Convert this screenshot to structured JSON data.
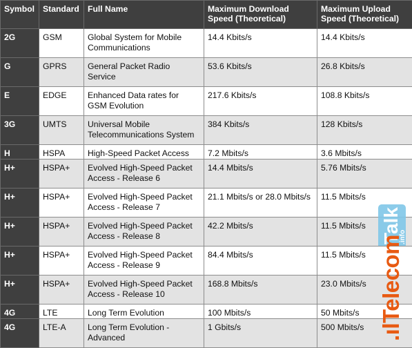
{
  "table": {
    "headers": {
      "symbol": "Symbol",
      "standard": "Standard",
      "full_name": "Full Name",
      "download_line1": "Maximum Download",
      "download_line2": "Speed (Theoretical)",
      "upload_line1": "Maximum Upload",
      "upload_line2": "Speed (Theoretical)"
    },
    "rows": [
      {
        "symbol": "2G",
        "standard": "GSM",
        "name1": "Global System for Mobile",
        "name2": "Communications",
        "download": "14.4 Kbits/s",
        "upload": "14.4 Kbits/s"
      },
      {
        "symbol": "G",
        "standard": "GPRS",
        "name1": "General Packet Radio",
        "name2": "Service",
        "download": "53.6 Kbits/s",
        "upload": "26.8 Kbits/s"
      },
      {
        "symbol": "E",
        "standard": "EDGE",
        "name1": "Enhanced Data rates for",
        "name2": "GSM Evolution",
        "download": "217.6 Kbits/s",
        "upload": "108.8 Kbits/s"
      },
      {
        "symbol": "3G",
        "standard": "UMTS",
        "name1": "Universal Mobile",
        "name2": "Telecommunications System",
        "download": "384 Kbits/s",
        "upload": "128 Kbits/s"
      },
      {
        "symbol": "H",
        "standard": "HSPA",
        "name1": "High-Speed Packet Access",
        "name2": "",
        "download": "7.2 Mbits/s",
        "upload": "3.6 Mbits/s"
      },
      {
        "symbol": "H+",
        "standard": "HSPA+",
        "name1": "Evolved High-Speed Packet",
        "name2": "Access - Release 6",
        "download": "14.4 Mbits/s",
        "upload": "5.76 Mbits/s"
      },
      {
        "symbol": "H+",
        "standard": "HSPA+",
        "name1": "Evolved High-Speed Packet",
        "name2": "Access - Release 7",
        "download": "21.1 Mbits/s or 28.0 Mbits/s",
        "upload": "11.5 Mbits/s"
      },
      {
        "symbol": "H+",
        "standard": "HSPA+",
        "name1": "Evolved High-Speed Packet",
        "name2": "Access - Release 8",
        "download": "42.2 Mbits/s",
        "upload": "11.5 Mbits/s"
      },
      {
        "symbol": "H+",
        "standard": "HSPA+",
        "name1": "Evolved High-Speed Packet",
        "name2": "Access - Release 9",
        "download": "84.4 Mbits/s",
        "upload": "11.5 Mbits/s"
      },
      {
        "symbol": "H+",
        "standard": "HSPA+",
        "name1": "Evolved High-Speed Packet",
        "name2": "Access - Release 10",
        "download": "168.8 Mbits/s",
        "upload": "23.0 Mbits/s"
      },
      {
        "symbol": "4G",
        "standard": "LTE",
        "name1": "Long Term Evolution",
        "name2": "",
        "download": "100 Mbits/s",
        "upload": "50 Mbits/s"
      },
      {
        "symbol": "4G",
        "standard": "LTE-A",
        "name1": "Long Term Evolution -",
        "name2": "Advanced",
        "download": "1 Gbits/s",
        "upload": "500 Mbits/s"
      }
    ]
  },
  "watermark": {
    "brand_main": ".ılTelecom",
    "brand_box": "Talk",
    "brand_suffix": ".info",
    "colors": {
      "main": "#e85a12",
      "box": "#7fc6e8"
    }
  },
  "colors": {
    "header_bg": "#3f3f3f",
    "row_alt": "#e3e3e3",
    "row": "#ffffff"
  }
}
